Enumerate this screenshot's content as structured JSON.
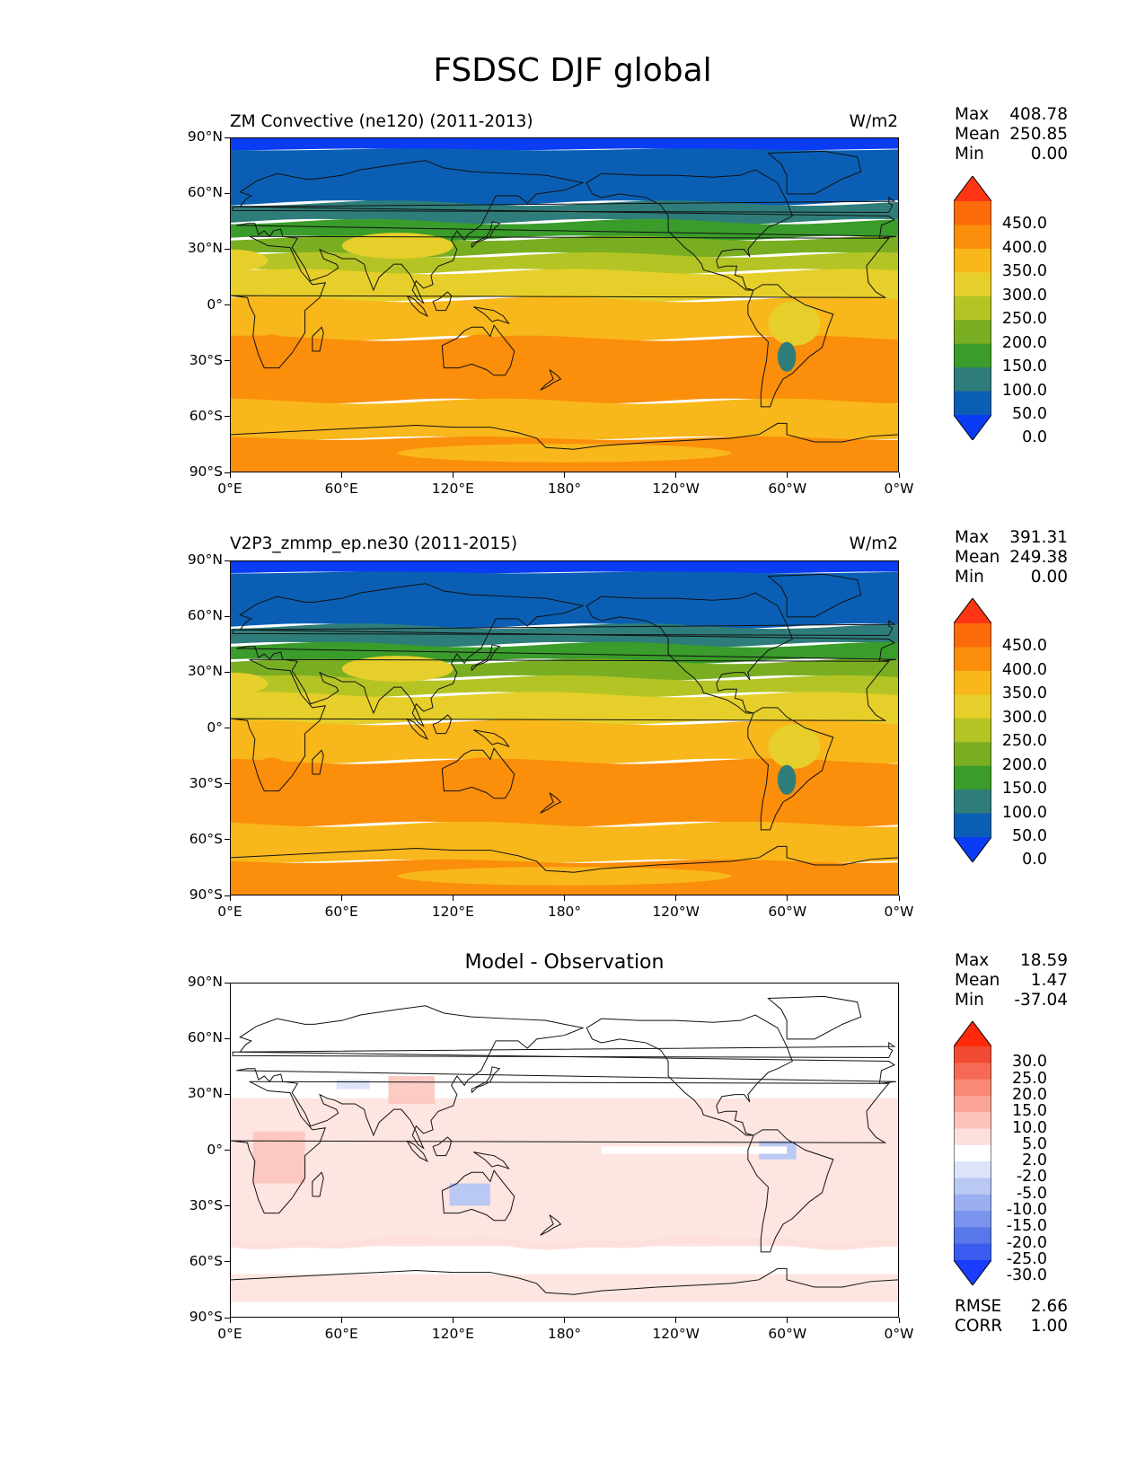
{
  "title": "FSDSC DJF global",
  "colors": {
    "levels": [
      "#0a3cf5",
      "#0a5fb4",
      "#2f7d7a",
      "#3a9c2a",
      "#7aae22",
      "#b4c424",
      "#e6cf2a",
      "#f8b71a",
      "#fb8e0a",
      "#fb6b0a",
      "#ff3514"
    ],
    "diff_levels": [
      "#1a3cff",
      "#3a5cf0",
      "#5877e8",
      "#7a93ec",
      "#9aaef0",
      "#bac8f4",
      "#dde4fa",
      "#ffffff",
      "#fde0dc",
      "#fcc3ba",
      "#fba596",
      "#f98874",
      "#f66a55",
      "#f24b33",
      "#ff2a0a"
    ]
  },
  "panels": [
    {
      "id": "test",
      "title": "ZM Convective (ne120) (2011-2013)",
      "units": "W/m2",
      "stats": [
        {
          "label": "Max",
          "value": "408.78"
        },
        {
          "label": "Mean",
          "value": "250.85"
        },
        {
          "label": "Min",
          "value": "0.00"
        }
      ],
      "colorbar_labels": [
        "450.0",
        "400.0",
        "350.0",
        "300.0",
        "250.0",
        "200.0",
        "150.0",
        "100.0",
        "50.0",
        "0.0"
      ]
    },
    {
      "id": "ref",
      "title": "V2P3_zmmp_ep.ne30 (2011-2015)",
      "units": "W/m2",
      "stats": [
        {
          "label": "Max",
          "value": "391.31"
        },
        {
          "label": "Mean",
          "value": "249.38"
        },
        {
          "label": "Min",
          "value": "0.00"
        }
      ],
      "colorbar_labels": [
        "450.0",
        "400.0",
        "350.0",
        "300.0",
        "250.0",
        "200.0",
        "150.0",
        "100.0",
        "50.0",
        "0.0"
      ]
    },
    {
      "id": "diff",
      "title": "Model - Observation",
      "units": "",
      "stats": [
        {
          "label": "Max",
          "value": "18.59"
        },
        {
          "label": "Mean",
          "value": "1.47"
        },
        {
          "label": "Min",
          "value": "-37.04"
        }
      ],
      "colorbar_labels": [
        "30.0",
        "25.0",
        "20.0",
        "15.0",
        "10.0",
        "5.0",
        "2.0",
        "-2.0",
        "-5.0",
        "-10.0",
        "-15.0",
        "-20.0",
        "-25.0",
        "-30.0"
      ],
      "metrics": [
        {
          "label": "RMSE",
          "value": "2.66"
        },
        {
          "label": "CORR",
          "value": "1.00"
        }
      ]
    }
  ],
  "axes": {
    "lat_ticks": [
      "90°N",
      "60°N",
      "30°N",
      "0°",
      "30°S",
      "60°S",
      "90°S"
    ],
    "lon_ticks": [
      "0°E",
      "60°E",
      "120°E",
      "180°",
      "120°W",
      "60°W",
      "0°W"
    ]
  }
}
